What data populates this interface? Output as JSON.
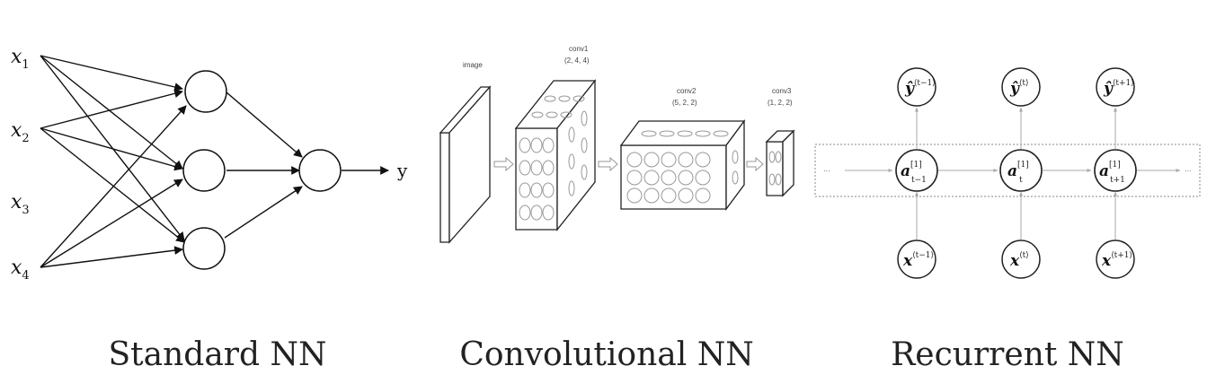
{
  "captions": {
    "standard": "Standard NN",
    "convolutional": "Convolutional NN",
    "recurrent": "Recurrent NN"
  },
  "standard_nn": {
    "inputs": [
      {
        "base": "x",
        "sub": "1"
      },
      {
        "base": "x",
        "sub": "2"
      },
      {
        "base": "x",
        "sub": "3"
      },
      {
        "base": "x",
        "sub": "4"
      }
    ],
    "output_label": "y"
  },
  "conv_nn": {
    "image_label": "image",
    "conv1_label": "conv1",
    "conv1_dims": "(2, 4, 4)",
    "conv2_label": "conv2",
    "conv2_dims": "(5, 2, 2)",
    "conv3_label": "conv3",
    "conv3_dims": "(1, 2, 2)"
  },
  "recurrent_nn": {
    "outputs": [
      {
        "base": "ŷ",
        "sup": "⟨t−1⟩"
      },
      {
        "base": "ŷ",
        "sup": "⟨t⟩"
      },
      {
        "base": "ŷ",
        "sup": "⟨t+1⟩"
      }
    ],
    "hidden": [
      {
        "base": "a",
        "sup": "[1]",
        "sub": "t−1"
      },
      {
        "base": "a",
        "sup": "[1]",
        "sub": "t"
      },
      {
        "base": "a",
        "sup": "[1]",
        "sub": "t+1"
      }
    ],
    "inputs": [
      {
        "base": "x",
        "sup": "⟨t−1⟩"
      },
      {
        "base": "x",
        "sup": "⟨t⟩"
      },
      {
        "base": "x",
        "sup": "⟨t+1⟩"
      }
    ],
    "ellipsis_left": "···",
    "ellipsis_right": "···"
  }
}
